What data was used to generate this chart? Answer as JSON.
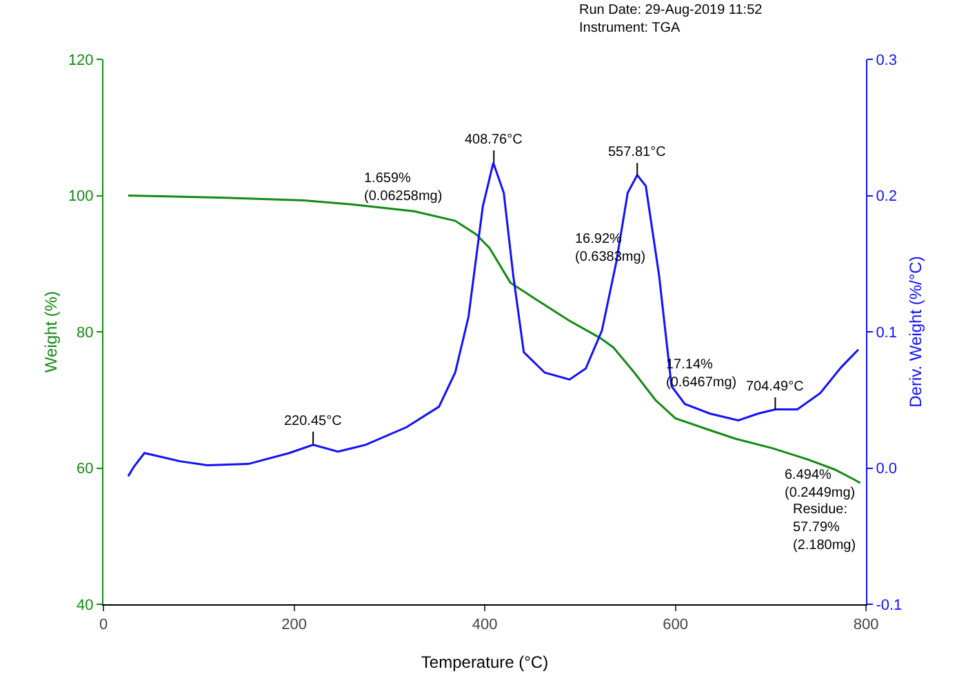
{
  "chart_data": {
    "type": "line",
    "xlabel": "Temperature (°C)",
    "ylabel": "Weight (%)",
    "y2label": "Deriv. Weight (%/°C)",
    "xlim": [
      0,
      800
    ],
    "xticks": [
      0,
      200,
      400,
      600,
      800
    ],
    "ylim": [
      40,
      120
    ],
    "yticks": [
      40,
      60,
      80,
      100,
      120
    ],
    "y2lim": [
      -0.1,
      0.3
    ],
    "y2ticks": [
      {
        "value": -0.1,
        "label": "-0.1"
      },
      {
        "value": 0,
        "label": "0.0"
      },
      0.1,
      0.2,
      0.3
    ],
    "grid": false,
    "series": [
      {
        "color": "#138a13",
        "x": [
          26,
          123,
          210,
          260,
          326,
          369,
          391,
          405,
          427,
          449,
          488,
          521,
          535,
          557,
          579,
          600,
          629,
          663,
          702,
          738,
          767,
          789,
          794
        ],
        "values": [
          100,
          99.7,
          99.3,
          98.7,
          97.7,
          96.3,
          94.3,
          92.3,
          87.2,
          85.2,
          81.7,
          79.1,
          77.7,
          74.0,
          70.0,
          67.3,
          65.9,
          64.3,
          62.9,
          61.3,
          59.8,
          58.2,
          57.8
        ]
      },
      {
        "color": "#1010ff",
        "axis": "y2",
        "x": [
          26,
          32,
          43,
          80,
          109,
          152,
          195,
          220,
          246,
          275,
          318,
          352,
          369,
          383,
          398,
          409,
          420,
          430,
          441,
          463,
          489,
          506,
          523,
          538,
          550,
          560,
          569,
          583,
          596,
          610,
          636,
          666,
          687,
          705,
          728,
          752,
          774,
          792
        ],
        "values": [
          -0.006,
          0.001,
          0.011,
          0.005,
          0.002,
          0.003,
          0.011,
          0.017,
          0.012,
          0.017,
          0.03,
          0.045,
          0.07,
          0.111,
          0.192,
          0.224,
          0.202,
          0.141,
          0.085,
          0.07,
          0.065,
          0.073,
          0.101,
          0.151,
          0.202,
          0.215,
          0.207,
          0.141,
          0.06,
          0.047,
          0.04,
          0.035,
          0.04,
          0.043,
          0.043,
          0.055,
          0.074,
          0.087
        ]
      }
    ],
    "annotations": [
      "Run Date: 29-Aug-2019 11:52",
      "Instrument: TGA",
      "220.45°C",
      "408.76°C",
      "557.81°C",
      "704.49°C",
      "1.659%\n(0.06258mg)",
      "16.92%\n(0.6383mg)",
      "17.14%\n(0.6467mg)",
      "6.494%\n(0.2449mg)",
      "Residue:\n57.79%\n(2.180mg)"
    ]
  }
}
